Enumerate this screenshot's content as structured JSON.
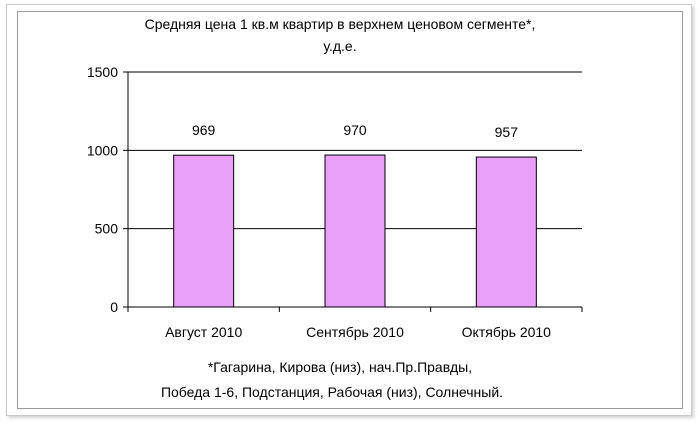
{
  "chart_data": {
    "type": "bar",
    "title_line1": "Средняя цена 1 кв.м квартир в верхнем ценовом сегменте*,",
    "title_line2": "у.д.е.",
    "categories": [
      "Август 2010",
      "Сентябрь 2010",
      "Октябрь 2010"
    ],
    "values": [
      969,
      970,
      957
    ],
    "data_labels": [
      "969",
      "970",
      "957"
    ],
    "ylim": [
      0,
      1500
    ],
    "yticks": [
      "0",
      "500",
      "1000",
      "1500"
    ],
    "grid": true,
    "bar_color": "#e8a0f8",
    "footnote_line1": "*Гагарина, Кирова (низ), нач.Пр.Правды,",
    "footnote_line2": "Победа 1-6, Подстанция, Рабочая (низ), Солнечный."
  }
}
